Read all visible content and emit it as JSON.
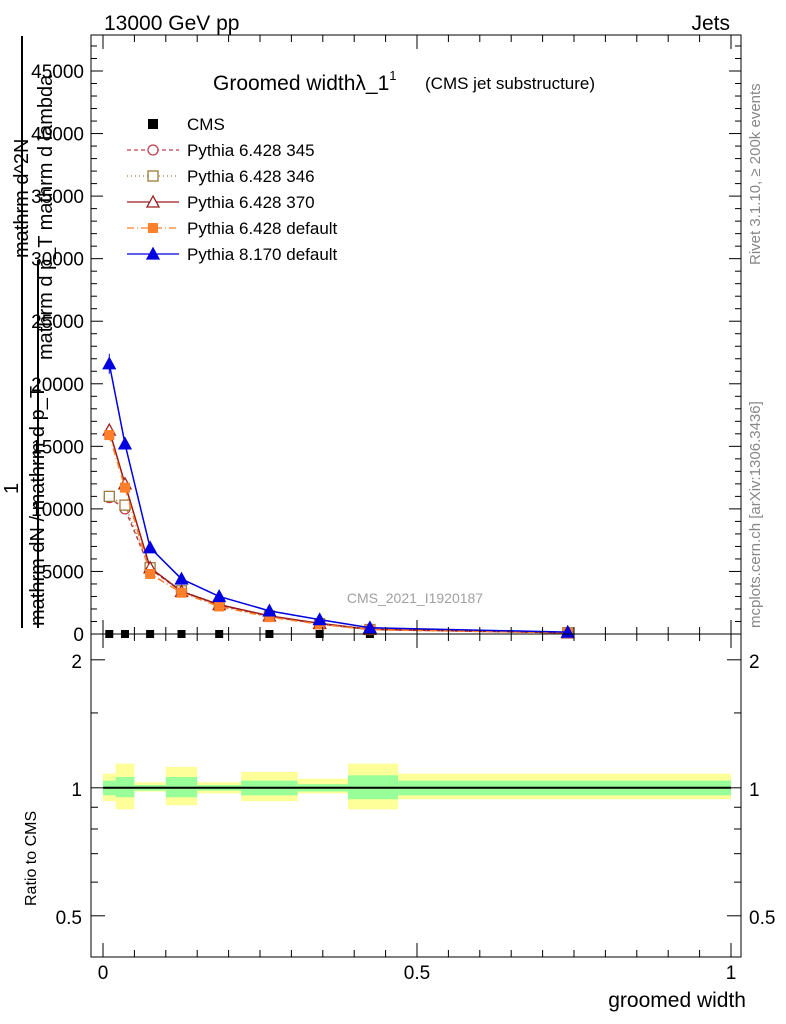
{
  "header": {
    "left": "13000 GeV pp",
    "right": "Jets"
  },
  "side": {
    "rivet": "Rivet 3.1.10, ≥ 200k events",
    "mcplots": "mcplots.cern.ch [arXiv:1306.3436]"
  },
  "watermark": "CMS_2021_I1920187",
  "chart_data": [
    {
      "type": "line",
      "title": "Groomed widthλ_1",
      "title_sup": "1",
      "subtitle": "(CMS jet substructure)",
      "ylabel_num": "mathrm d^2N",
      "ylabel_den": "mathrm d p_T mathrm d lambda",
      "ylabel_prefix": "1",
      "ylabel_prefix_den": "mathrm dN / mathrm d p_T",
      "xlim": [
        0,
        1
      ],
      "ylim": [
        0,
        45000
      ],
      "y_ticks": [
        0,
        5000,
        10000,
        15000,
        20000,
        25000,
        30000,
        35000,
        40000,
        45000
      ],
      "y_tick_labels": [
        "0",
        "5000",
        "10000",
        "15000",
        "20000",
        "25000",
        "30000",
        "35000",
        "40000",
        "45000"
      ],
      "x": [
        0.01,
        0.035,
        0.075,
        0.125,
        0.185,
        0.265,
        0.345,
        0.425,
        0.74
      ],
      "series": [
        {
          "name": "CMS",
          "color": "#000000",
          "marker": "square-filled",
          "dash": "none",
          "values": [
            0,
            0,
            0,
            0,
            0,
            0,
            0,
            0,
            0
          ]
        },
        {
          "name": "Pythia 6.428 345",
          "color": "#c0404a",
          "marker": "circle-open",
          "dash": "4,3",
          "values": [
            10900,
            10000,
            5200,
            3400,
            2300,
            1400,
            800,
            350,
            100
          ]
        },
        {
          "name": "Pythia 6.428 346",
          "color": "#9a7a3a",
          "marker": "square-open",
          "dash": "1,3",
          "values": [
            11000,
            10300,
            5300,
            3450,
            2350,
            1450,
            820,
            360,
            100
          ]
        },
        {
          "name": "Pythia 6.428 370",
          "color": "#9b1c1c",
          "marker": "triangle-open",
          "dash": "none",
          "values": [
            16300,
            12000,
            5300,
            3400,
            2350,
            1450,
            850,
            380,
            100
          ]
        },
        {
          "name": "Pythia 6.428 default",
          "color": "#ff7f2a",
          "marker": "square-filled",
          "dash": "7,3,1,3",
          "values": [
            15900,
            11700,
            4800,
            3300,
            2200,
            1350,
            780,
            340,
            100
          ]
        },
        {
          "name": "Pythia 8.170 default",
          "color": "#0000e0",
          "marker": "triangle-filled",
          "dash": "none",
          "values": [
            21600,
            15200,
            6900,
            4400,
            3000,
            1850,
            1150,
            500,
            150
          ]
        }
      ]
    },
    {
      "type": "area",
      "ylabel": "Ratio to CMS",
      "xlabel": "groomed width",
      "xlim": [
        0,
        1
      ],
      "ylim": [
        0.4,
        2.3
      ],
      "y_scale": "log",
      "y_ticks": [
        0.5,
        1,
        2
      ],
      "y_tick_labels": [
        "0.5",
        "1",
        "2"
      ],
      "x_ticks": [
        0,
        0.5,
        1
      ],
      "x_tick_labels": [
        "0",
        "0.5",
        "1"
      ],
      "reference": 1,
      "bin_edges": [
        0,
        0.02,
        0.05,
        0.1,
        0.15,
        0.22,
        0.31,
        0.39,
        0.47,
        1.0
      ],
      "band_green": [
        [
          0.96,
          1.04
        ],
        [
          0.95,
          1.06
        ],
        [
          0.985,
          1.015
        ],
        [
          0.95,
          1.06
        ],
        [
          0.985,
          1.015
        ],
        [
          0.96,
          1.04
        ],
        [
          0.98,
          1.02
        ],
        [
          0.94,
          1.07
        ],
        [
          0.96,
          1.04
        ]
      ],
      "band_yellow": [
        [
          0.93,
          1.08
        ],
        [
          0.89,
          1.14
        ],
        [
          0.98,
          1.03
        ],
        [
          0.91,
          1.12
        ],
        [
          0.97,
          1.03
        ],
        [
          0.93,
          1.09
        ],
        [
          0.97,
          1.05
        ],
        [
          0.89,
          1.14
        ],
        [
          0.94,
          1.08
        ]
      ],
      "band_green_color": "#99ff99",
      "band_yellow_color": "#ffff99"
    }
  ]
}
